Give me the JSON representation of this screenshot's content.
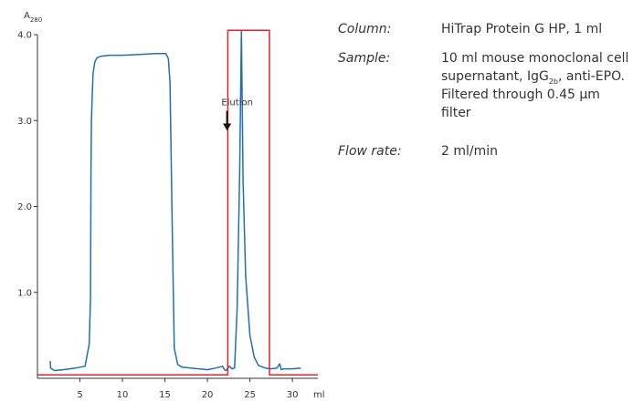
{
  "chart_data": {
    "type": "line",
    "ylabel_main": "A",
    "ylabel_sub": "280",
    "xlabel": "ml",
    "xlim": [
      0,
      33
    ],
    "ylim": [
      0,
      4.0
    ],
    "x_ticks": [
      5,
      10,
      15,
      20,
      25,
      30
    ],
    "y_ticks": [
      1.0,
      2.0,
      3.0,
      4.0
    ],
    "y_tick_labels": [
      "1.0",
      "2.0",
      "3.0",
      "4.0"
    ],
    "grid": false,
    "annotation": {
      "text": "Elution",
      "x": 23.5,
      "y": 3.05
    },
    "series": [
      {
        "color": "#1f6fb5",
        "x": [
          1.5,
          1.55,
          2.0,
          3.0,
          4.5,
          5.6,
          6.1,
          6.25,
          6.3,
          6.35,
          6.45,
          6.55,
          6.75,
          7.0,
          7.5,
          8.5,
          10,
          12,
          14,
          15.1,
          15.4,
          15.6,
          15.85,
          16.1,
          16.5,
          17,
          18,
          19,
          20,
          21,
          21.8,
          22.0,
          22.2,
          22.4,
          22.6,
          22.9,
          23.2,
          23.5,
          23.8,
          24.0,
          24.2,
          24.5,
          25.0,
          25.5,
          26.0,
          26.8,
          27.5,
          28.2,
          28.5,
          28.7,
          29.0,
          30.0,
          31.0
        ],
        "y": [
          0.2,
          0.12,
          0.09,
          0.1,
          0.12,
          0.14,
          0.4,
          0.95,
          2.4,
          3.0,
          3.3,
          3.55,
          3.68,
          3.73,
          3.75,
          3.76,
          3.76,
          3.77,
          3.78,
          3.78,
          3.72,
          3.45,
          1.8,
          0.35,
          0.16,
          0.13,
          0.12,
          0.11,
          0.1,
          0.12,
          0.14,
          0.1,
          0.09,
          0.12,
          0.14,
          0.11,
          0.12,
          0.8,
          2.4,
          4.05,
          2.3,
          1.2,
          0.5,
          0.25,
          0.15,
          0.12,
          0.11,
          0.12,
          0.17,
          0.1,
          0.11,
          0.11,
          0.12
        ]
      },
      {
        "color": "#e8212b",
        "x": [
          0,
          22.4,
          22.4,
          27.3,
          27.3,
          33
        ],
        "y": [
          0.04,
          0.04,
          4.05,
          4.05,
          0.04,
          0.04
        ]
      }
    ]
  },
  "info": {
    "column_label": "Column:",
    "column_value": "HiTrap Protein G HP, 1 ml",
    "sample_label": "Sample:",
    "sample_value_1": "10 ml mouse monoclonal cell supernatant, IgG",
    "sample_value_sub": "2b",
    "sample_value_2": ", anti-EPO. Filtered through 0.45 µm filter",
    "flow_label": "Flow rate:",
    "flow_value": "2 ml/min"
  }
}
